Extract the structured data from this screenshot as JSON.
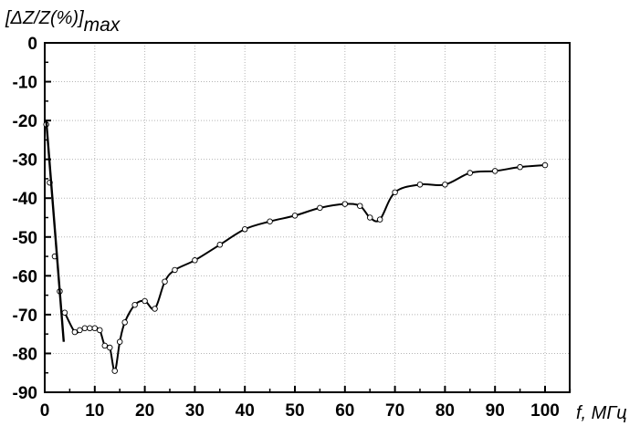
{
  "chart_data": {
    "type": "scatter",
    "ylabel_main": "[ΔZ/Z(%)]",
    "ylabel_sub": "max",
    "xlabel": "f, МГц",
    "xlim": [
      0,
      105
    ],
    "ylim": [
      -90,
      0
    ],
    "x_ticks": [
      "0",
      "10",
      "20",
      "30",
      "40",
      "50",
      "60",
      "70",
      "80",
      "90",
      "100"
    ],
    "y_ticks": [
      "0",
      "-10",
      "-20",
      "-30",
      "-40",
      "-50",
      "-60",
      "-70",
      "-80",
      "-90"
    ],
    "grid": true,
    "series": [
      {
        "style": "markers+smooth-line",
        "x": [
          0.3,
          1,
          2,
          3,
          4,
          6,
          7,
          8,
          9,
          10,
          11,
          12,
          13,
          14,
          15,
          16,
          18,
          20,
          22,
          24,
          26,
          30,
          35,
          40,
          45,
          50,
          55,
          60,
          63,
          65,
          67,
          70,
          75,
          80,
          85,
          90,
          95,
          100
        ],
        "y": [
          -21,
          -36,
          -55,
          -64,
          -69.5,
          -74.5,
          -74,
          -73.5,
          -73.5,
          -73.5,
          -74,
          -78,
          -78.5,
          -84.5,
          -77,
          -72,
          -67.5,
          -66.5,
          -68.5,
          -61.5,
          -58.5,
          -56,
          -52,
          -48,
          -46,
          -44.5,
          -42.5,
          -41.5,
          -42,
          -45,
          -45.5,
          -38.5,
          -36.5,
          -36.5,
          -33.5,
          -33,
          -32,
          -31.5
        ]
      },
      {
        "style": "line",
        "x": [
          0.3,
          3.8
        ],
        "y": [
          -20,
          -77
        ]
      }
    ]
  }
}
